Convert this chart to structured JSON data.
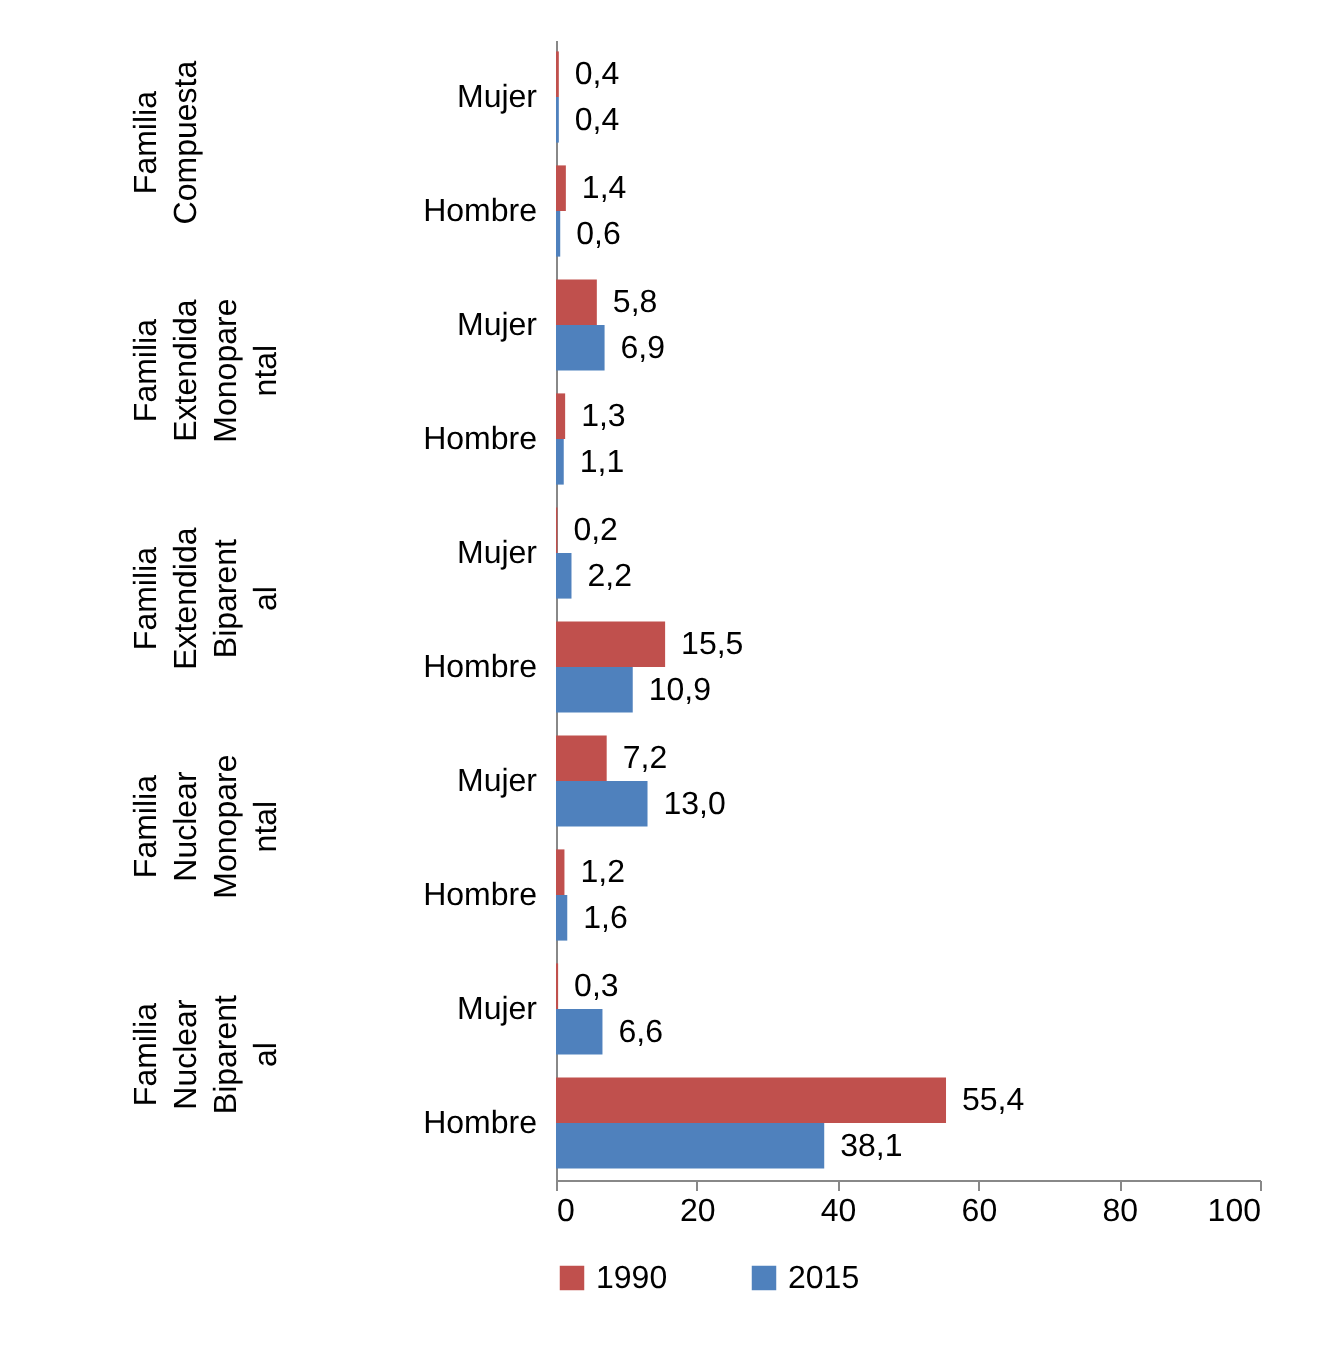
{
  "chart_data": {
    "type": "bar",
    "orientation": "horizontal",
    "categories": [
      "Mujer",
      "Hombre",
      "Mujer",
      "Hombre",
      "Mujer",
      "Hombre",
      "Mujer",
      "Hombre",
      "Mujer",
      "Hombre"
    ],
    "annotations": [
      "Familia Compuesta",
      "Familia Extendida Monoparental",
      "Familia Extendida Biparental",
      "Familia Nuclear Monoparental",
      "Familia Nuclear Biparental"
    ],
    "series": [
      {
        "name": "1990",
        "color": "#c0504d",
        "values": [
          0.4,
          1.4,
          5.8,
          1.3,
          0.2,
          15.5,
          7.2,
          1.2,
          0.3,
          55.4
        ],
        "value_labels": [
          "0,4",
          "1,4",
          "5,8",
          "1,3",
          "0,2",
          "15,5",
          "7,2",
          "1,2",
          "0,3",
          "55,4"
        ]
      },
      {
        "name": "2015",
        "color": "#4f81bd",
        "values": [
          0.4,
          0.6,
          6.9,
          1.1,
          2.2,
          10.9,
          13.0,
          1.6,
          6.6,
          38.1
        ],
        "value_labels": [
          "0,4",
          "0,6",
          "6,9",
          "1,1",
          "2,2",
          "10,9",
          "13,0",
          "1,6",
          "6,6",
          "38,1"
        ]
      }
    ],
    "xlim": [
      0,
      100
    ],
    "xticks": [
      0,
      20,
      40,
      60,
      80,
      100
    ],
    "legend": "bottom",
    "grid": false
  }
}
